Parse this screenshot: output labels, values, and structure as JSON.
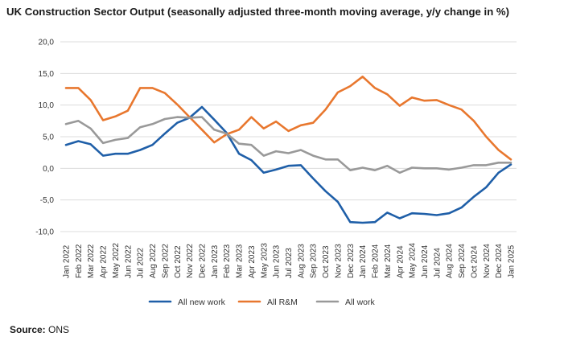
{
  "chart_data": {
    "type": "line",
    "title": "UK Construction Sector Output (seasonally adjusted three-month moving average, y/y change in %)",
    "xlabel": "",
    "ylabel": "",
    "ylim": [
      -10,
      20
    ],
    "y_ticks": [
      "20,0",
      "15,0",
      "10,0",
      "5,0",
      "0,0",
      "-5,0",
      "-10,0"
    ],
    "y_tick_values": [
      20,
      15,
      10,
      5,
      0,
      -5,
      -10
    ],
    "grid": true,
    "legend_position": "bottom",
    "categories": [
      "Jan 2022",
      "Feb 2022",
      "Mar 2022",
      "Apr 2022",
      "May 2022",
      "Jun 2022",
      "Jul 2022",
      "Aug 2022",
      "Sep 2022",
      "Oct 2022",
      "Nov 2022",
      "Dec 2022",
      "Jan 2023",
      "Feb 2023",
      "Mar 2023",
      "Apr 2023",
      "May 2023",
      "Jun 2023",
      "Jul 2023",
      "Aug 2023",
      "Sep 2023",
      "Oct 2023",
      "Nov 2023",
      "Dec 2023",
      "Jan 2024",
      "Feb 2024",
      "Mar 2024",
      "Apr 2024",
      "May 2024",
      "Jun 2024",
      "Jul 2024",
      "Aug 2024",
      "Sep 2024",
      "Oct 2024",
      "Nov 2024",
      "Dec 2024",
      "Jan 2025"
    ],
    "series": [
      {
        "name": "All new work",
        "color": "#1f5fa8",
        "values": [
          3.7,
          4.3,
          3.8,
          2.0,
          2.3,
          2.3,
          2.9,
          3.7,
          5.5,
          7.2,
          8.0,
          9.7,
          7.7,
          5.6,
          2.3,
          1.3,
          -0.7,
          -0.2,
          0.4,
          0.5,
          -1.6,
          -3.6,
          -5.3,
          -8.5,
          -8.6,
          -8.5,
          -7.0,
          -7.9,
          -7.1,
          -7.2,
          -7.4,
          -7.1,
          -6.2,
          -4.5,
          -3.0,
          -0.7,
          0.6
        ]
      },
      {
        "name": "All R&M",
        "color": "#e8772e",
        "values": [
          12.7,
          12.7,
          10.8,
          7.6,
          8.2,
          9.1,
          12.7,
          12.7,
          11.9,
          10.1,
          8.1,
          6.1,
          4.1,
          5.4,
          6.1,
          8.1,
          6.3,
          7.4,
          5.9,
          6.8,
          7.2,
          9.3,
          12.0,
          13.0,
          14.5,
          12.7,
          11.7,
          9.9,
          11.2,
          10.7,
          10.8,
          10.0,
          9.3,
          7.5,
          5.0,
          2.9,
          1.4
        ]
      },
      {
        "name": "All work",
        "color": "#999999",
        "values": [
          7.0,
          7.5,
          6.3,
          4.0,
          4.5,
          4.8,
          6.5,
          7.0,
          7.8,
          8.1,
          8.0,
          8.1,
          6.1,
          5.5,
          3.9,
          3.7,
          2.0,
          2.7,
          2.4,
          2.9,
          2.0,
          1.4,
          1.4,
          -0.3,
          0.1,
          -0.3,
          0.4,
          -0.7,
          0.1,
          0.0,
          0.0,
          -0.2,
          0.1,
          0.5,
          0.5,
          0.9,
          0.9
        ]
      }
    ]
  },
  "source": {
    "label": "Source:",
    "value": "ONS"
  }
}
